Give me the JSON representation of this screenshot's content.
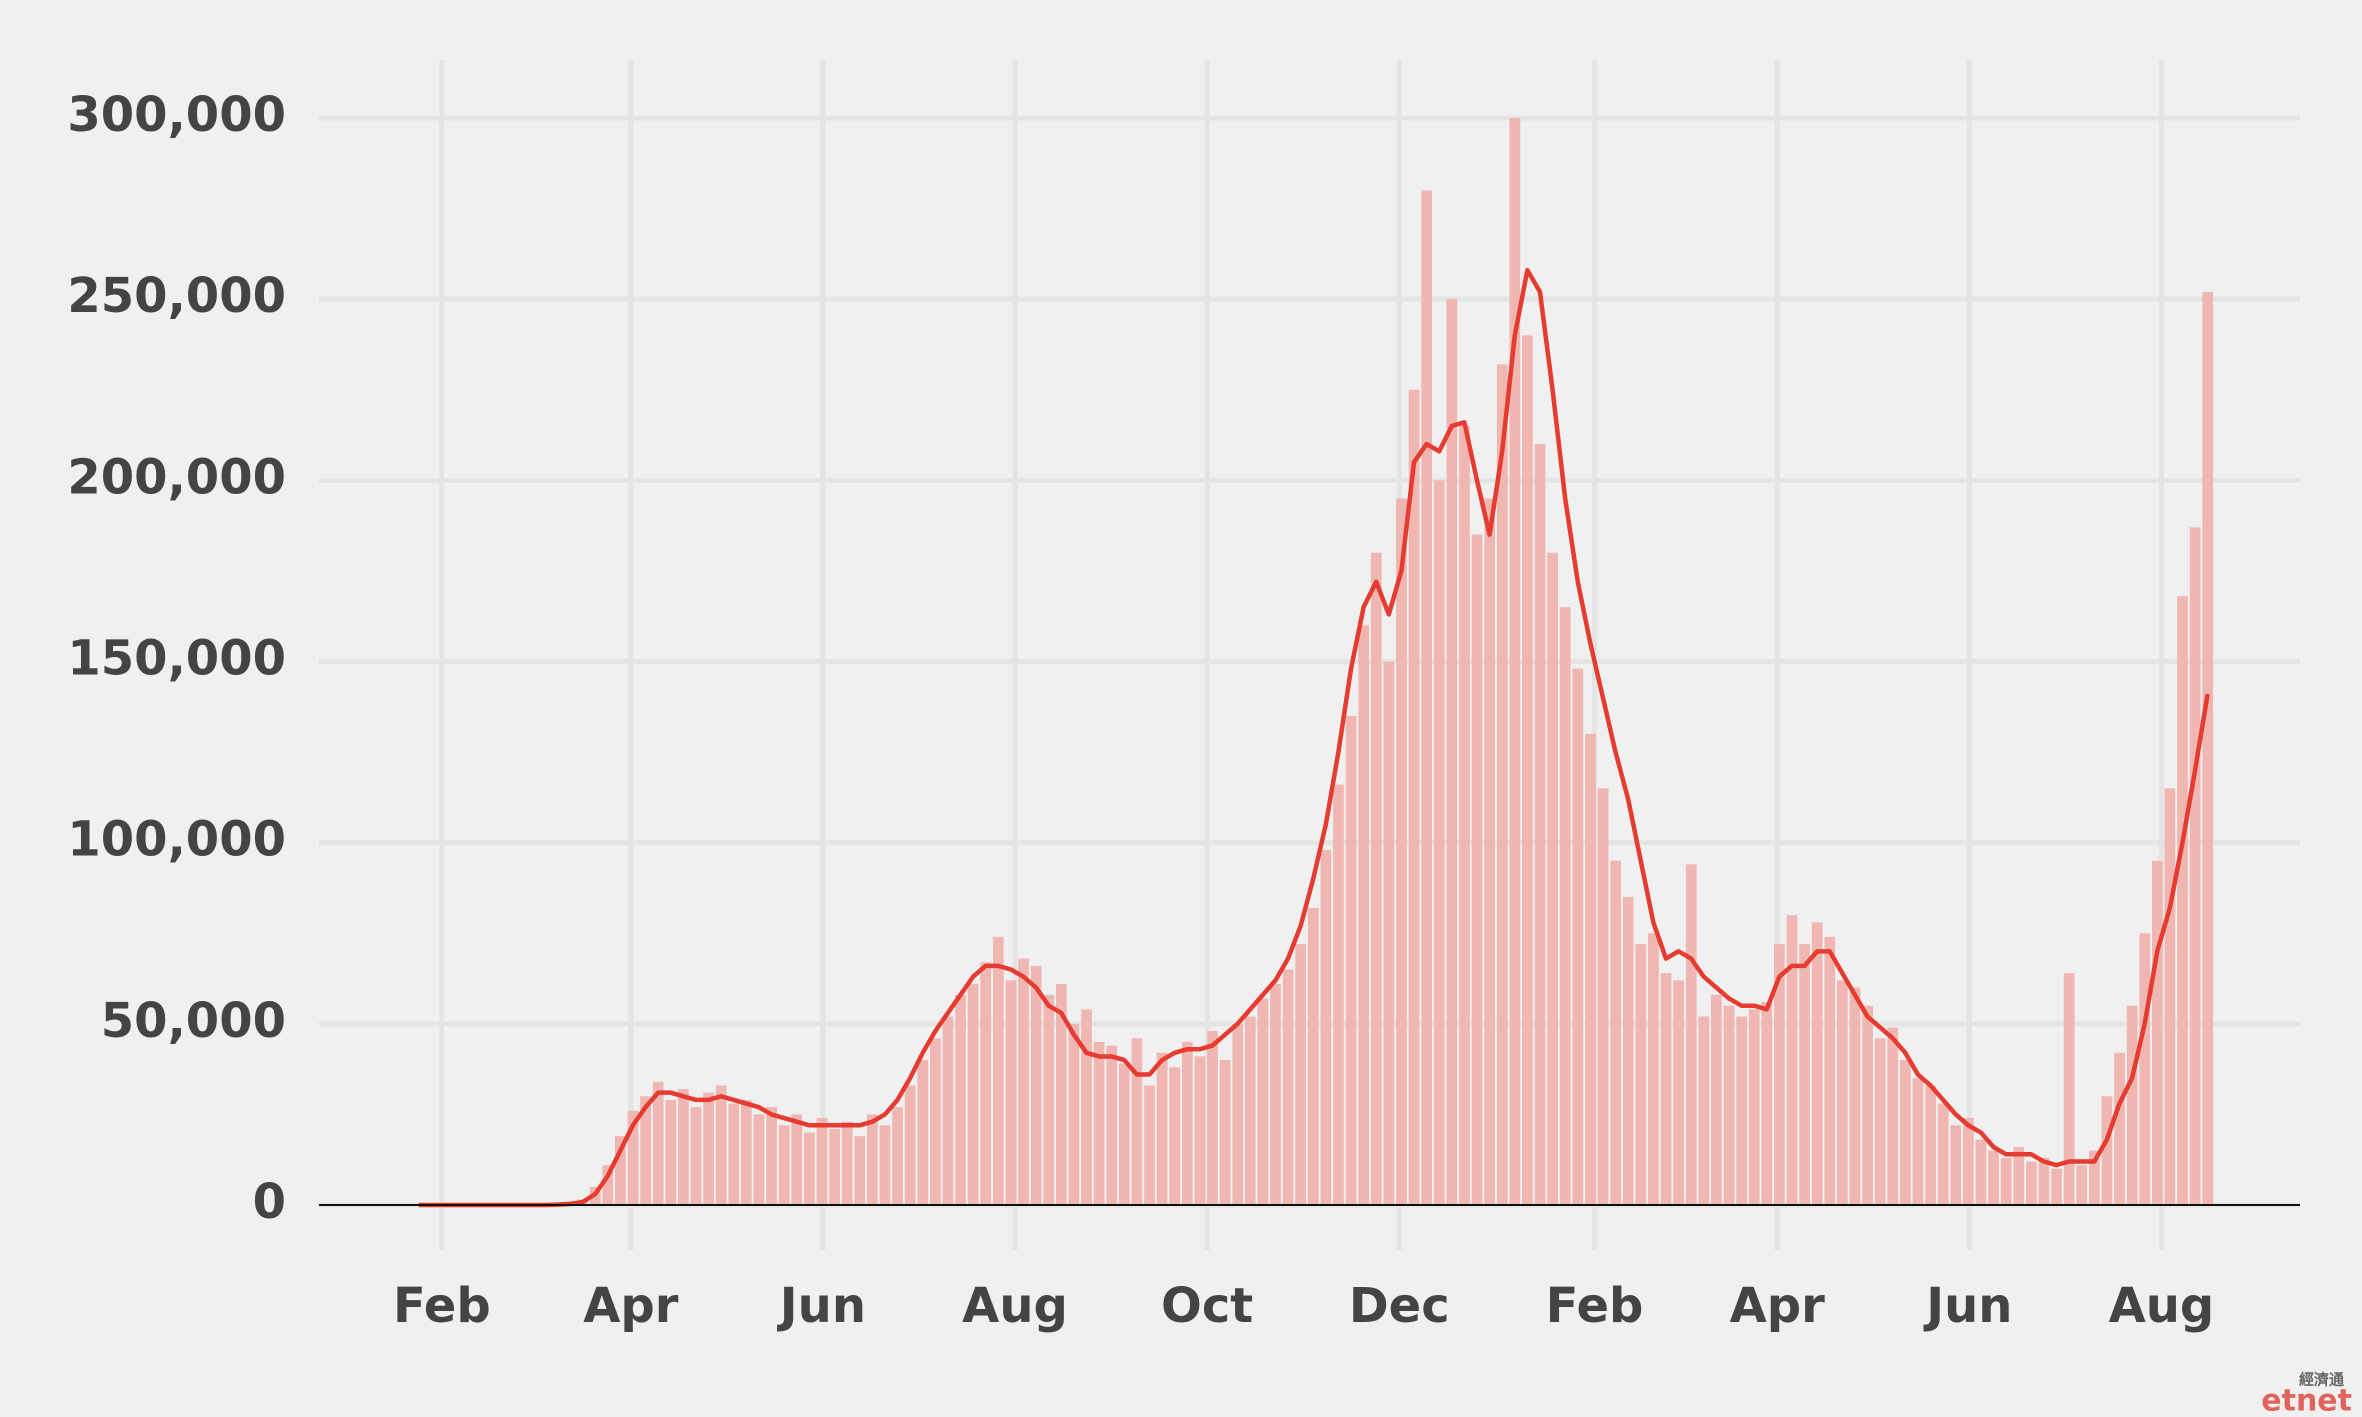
{
  "chart_data": {
    "type": "bar-line",
    "x": [
      22,
      26,
      30,
      34,
      38,
      42,
      46,
      50,
      54,
      58,
      62,
      66,
      70,
      74,
      78,
      82,
      86,
      90,
      94,
      98,
      102,
      106,
      110,
      114,
      118,
      122,
      126,
      130,
      134,
      138,
      142,
      146,
      150,
      154,
      158,
      162,
      166,
      170,
      174,
      178,
      182,
      186,
      190,
      194,
      198,
      202,
      206,
      210,
      214,
      218,
      222,
      226,
      230,
      234,
      238,
      242,
      246,
      250,
      254,
      258,
      262,
      266,
      270,
      274,
      278,
      282,
      286,
      290,
      294,
      298,
      302,
      306,
      310,
      314,
      318,
      322,
      326,
      330,
      334,
      338,
      342,
      346,
      350,
      354,
      358,
      362,
      366,
      370,
      374,
      378,
      382,
      386,
      390,
      394,
      398,
      402,
      406,
      410,
      414,
      418,
      422,
      426,
      430,
      434,
      438,
      442,
      446,
      450,
      454,
      458,
      462,
      466,
      470,
      474,
      478,
      482,
      486,
      490,
      494,
      498,
      502,
      506,
      510,
      514,
      518,
      522,
      526,
      530,
      534,
      538,
      542,
      546,
      550,
      554,
      558,
      562,
      566,
      570,
      574,
      578,
      582,
      586,
      590
    ],
    "series": [
      {
        "type": "bar",
        "color": "#f0b6b1",
        "values": [
          0,
          0,
          0,
          0,
          0,
          0,
          0,
          0,
          0,
          0,
          0,
          200,
          500,
          1500,
          5000,
          11000,
          19000,
          26000,
          30000,
          34000,
          29000,
          32000,
          27000,
          31000,
          33000,
          28000,
          29000,
          25000,
          27000,
          22000,
          25000,
          20000,
          24000,
          21000,
          23000,
          19000,
          25000,
          22000,
          27000,
          33000,
          40000,
          46000,
          52000,
          58000,
          61000,
          67000,
          74000,
          62000,
          68000,
          66000,
          58000,
          61000,
          50000,
          54000,
          45000,
          44000,
          39000,
          46000,
          33000,
          42000,
          38000,
          45000,
          41000,
          48000,
          40000,
          50000,
          52000,
          57000,
          61000,
          65000,
          72000,
          82000,
          98000,
          116000,
          135000,
          160000,
          180000,
          150000,
          195000,
          225000,
          280000,
          200000,
          250000,
          215000,
          185000,
          195000,
          232000,
          300000,
          240000,
          210000,
          180000,
          165000,
          148000,
          130000,
          115000,
          95000,
          85000,
          72000,
          75000,
          64000,
          62000,
          94000,
          52000,
          58000,
          55000,
          52000,
          54000,
          56000,
          72000,
          80000,
          72000,
          78000,
          74000,
          62000,
          60000,
          55000,
          46000,
          49000,
          40000,
          35000,
          33000,
          28000,
          22000,
          24000,
          18000,
          15000,
          13000,
          16000,
          12000,
          13000,
          10000,
          64000,
          11000,
          15000,
          30000,
          42000,
          55000,
          75000,
          95000,
          115000,
          168000,
          187000,
          252000
        ]
      },
      {
        "type": "line",
        "color": "#e63b30",
        "values": [
          0,
          0,
          0,
          0,
          0,
          0,
          0,
          0,
          0,
          0,
          0,
          100,
          300,
          800,
          3000,
          8000,
          15000,
          22000,
          27000,
          31000,
          31000,
          30000,
          29000,
          29000,
          30000,
          29000,
          28000,
          27000,
          25000,
          24000,
          23000,
          22000,
          22000,
          22000,
          22000,
          22000,
          23000,
          25000,
          29000,
          35000,
          42000,
          48000,
          53000,
          58000,
          63000,
          66000,
          66000,
          65000,
          63000,
          60000,
          55000,
          53000,
          47000,
          42000,
          41000,
          41000,
          40000,
          36000,
          36000,
          40000,
          42000,
          43000,
          43000,
          44000,
          47000,
          50000,
          54000,
          58000,
          62000,
          68000,
          77000,
          90000,
          105000,
          125000,
          148000,
          165000,
          172000,
          163000,
          175000,
          205000,
          210000,
          208000,
          215000,
          216000,
          200000,
          185000,
          208000,
          240000,
          258000,
          252000,
          225000,
          195000,
          172000,
          155000,
          140000,
          125000,
          112000,
          95000,
          78000,
          68000,
          70000,
          68000,
          63000,
          60000,
          57000,
          55000,
          55000,
          54000,
          63000,
          66000,
          66000,
          70000,
          70000,
          64000,
          58000,
          52000,
          49000,
          46000,
          42000,
          36000,
          33000,
          29000,
          25000,
          22000,
          20000,
          16000,
          14000,
          14000,
          14000,
          12000,
          11000,
          12000,
          12000,
          12000,
          18000,
          28000,
          35000,
          50000,
          70000,
          82000,
          100000,
          120000,
          141000
        ]
      }
    ],
    "xlim": [
      -8,
      621
    ],
    "xticks": [
      {
        "value": 31,
        "label": "Feb"
      },
      {
        "value": 91,
        "label": "Apr"
      },
      {
        "value": 152,
        "label": "Jun"
      },
      {
        "value": 213,
        "label": "Aug"
      },
      {
        "value": 274,
        "label": "Oct"
      },
      {
        "value": 335,
        "label": "Dec"
      },
      {
        "value": 397,
        "label": "Feb"
      },
      {
        "value": 455,
        "label": "Apr"
      },
      {
        "value": 516,
        "label": "Jun"
      },
      {
        "value": 577,
        "label": "Aug"
      }
    ],
    "ylim": [
      0,
      316000
    ],
    "yticks": [
      0,
      {
        "value": 50000,
        "label": "50,000"
      },
      {
        "value": 100000,
        "label": "100,000"
      },
      {
        "value": 150000,
        "label": "150,000"
      },
      {
        "value": 200000,
        "label": "200,000"
      },
      {
        "value": 250000,
        "label": "250,000"
      },
      {
        "value": 300000,
        "label": "300,000"
      }
    ],
    "grid": true
  },
  "watermark": {
    "zh": "經濟通",
    "en": "etnet"
  }
}
